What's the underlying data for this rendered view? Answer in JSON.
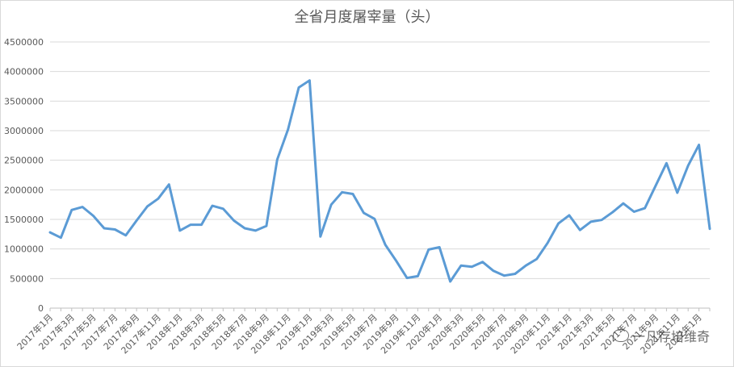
{
  "chart_data": {
    "type": "line",
    "title": "全省月度屠宰量（头）",
    "xlabel": "",
    "ylabel": "",
    "ylim": [
      0,
      4500000
    ],
    "yticks": [
      0,
      500000,
      1000000,
      1500000,
      2000000,
      2500000,
      3000000,
      3500000,
      4000000,
      4500000
    ],
    "grid": true,
    "legend": "none",
    "line_color": "#5b9bd5",
    "categories": [
      "2017年1月",
      "2017年2月",
      "2017年3月",
      "2017年4月",
      "2017年5月",
      "2017年6月",
      "2017年7月",
      "2017年8月",
      "2017年9月",
      "2017年10月",
      "2017年11月",
      "2017年12月",
      "2018年1月",
      "2018年2月",
      "2018年3月",
      "2018年4月",
      "2018年5月",
      "2018年6月",
      "2018年7月",
      "2018年8月",
      "2018年9月",
      "2018年10月",
      "2018年11月",
      "2018年12月",
      "2019年1月",
      "2019年2月",
      "2019年3月",
      "2019年4月",
      "2019年5月",
      "2019年6月",
      "2019年7月",
      "2019年8月",
      "2019年9月",
      "2019年10月",
      "2019年11月",
      "2019年12月",
      "2020年1月",
      "2020年2月",
      "2020年3月",
      "2020年4月",
      "2020年5月",
      "2020年6月",
      "2020年7月",
      "2020年8月",
      "2020年9月",
      "2020年10月",
      "2020年11月",
      "2020年12月",
      "2021年1月",
      "2021年2月",
      "2021年3月",
      "2021年4月",
      "2021年5月",
      "2021年6月",
      "2021年7月",
      "2021年8月",
      "2021年9月",
      "2021年10月",
      "2021年11月",
      "2021年12月",
      "2022年1月",
      "2022年2月"
    ],
    "tick_labels": [
      "2017年1月",
      "2017年3月",
      "2017年5月",
      "2017年7月",
      "2017年9月",
      "2017年11月",
      "2018年1月",
      "2018年3月",
      "2018年5月",
      "2018年7月",
      "2018年9月",
      "2018年11月",
      "2019年1月",
      "2019年3月",
      "2019年5月",
      "2019年7月",
      "2019年9月",
      "2019年11月",
      "2020年1月",
      "2020年3月",
      "2020年5月",
      "2020年7月",
      "2020年9月",
      "2020年11月",
      "2021年1月",
      "2021年3月",
      "2021年5月",
      "2021年7月",
      "2021年9月",
      "2021年11月",
      "2022年1月"
    ],
    "values": [
      1280000,
      1190000,
      1660000,
      1710000,
      1560000,
      1350000,
      1330000,
      1230000,
      1480000,
      1720000,
      1850000,
      2090000,
      1310000,
      1410000,
      1410000,
      1730000,
      1680000,
      1480000,
      1350000,
      1310000,
      1390000,
      2510000,
      3020000,
      3730000,
      3850000,
      1210000,
      1750000,
      1960000,
      1930000,
      1610000,
      1510000,
      1070000,
      800000,
      510000,
      540000,
      990000,
      1030000,
      450000,
      720000,
      700000,
      780000,
      630000,
      550000,
      580000,
      720000,
      830000,
      1100000,
      1430000,
      1570000,
      1320000,
      1460000,
      1490000,
      1620000,
      1770000,
      1630000,
      1690000,
      2070000,
      2450000,
      1950000,
      2410000,
      2760000,
      1340000
    ]
  },
  "watermark": {
    "icon": "wechat-icon",
    "text": "一凡存培维奇"
  }
}
